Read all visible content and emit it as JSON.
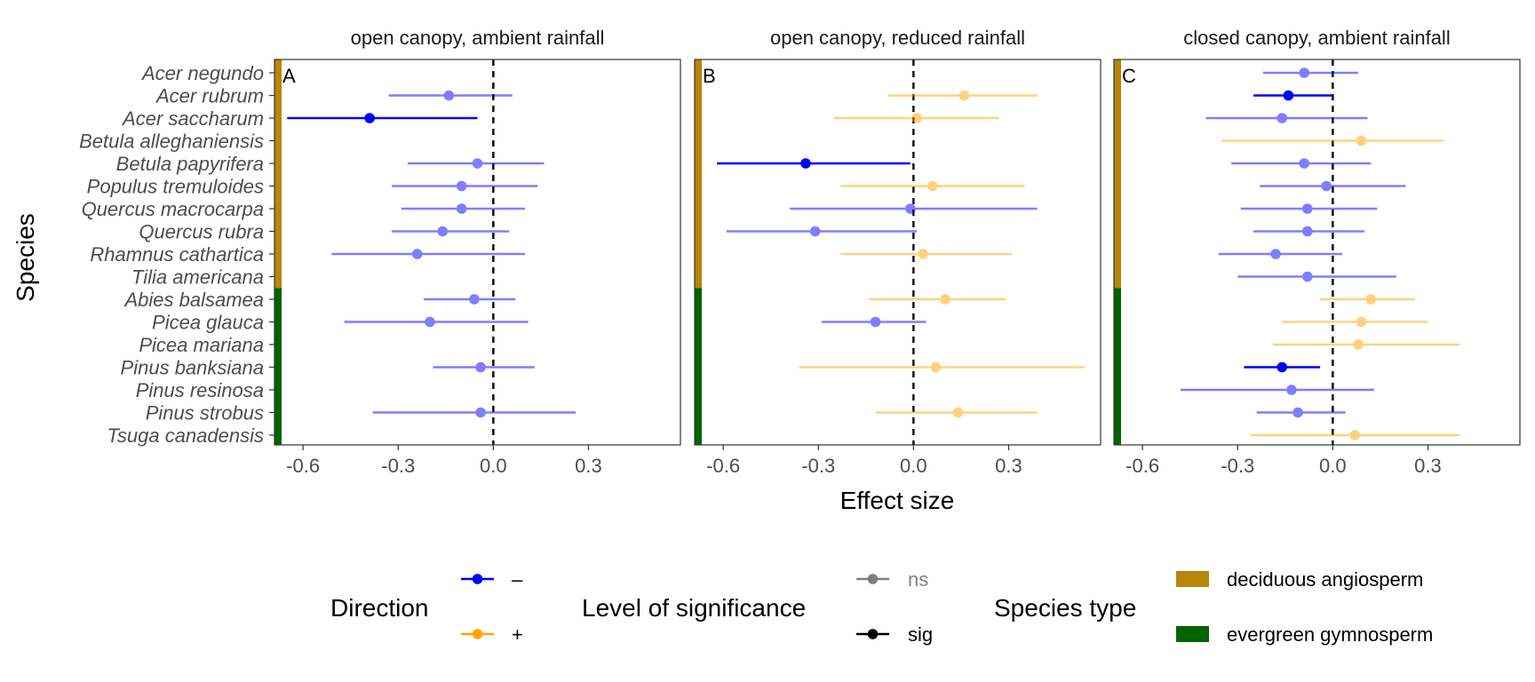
{
  "chart_data": {
    "type": "forest",
    "y_axis_title": "Species",
    "x_axis_title": "Effect size",
    "x_ticks": [
      -0.6,
      -0.3,
      0.0,
      0.3
    ],
    "x_tick_labels": [
      "-0.6",
      "-0.3",
      "0.0",
      "0.3"
    ],
    "xlim": [
      -0.69,
      0.59
    ],
    "species": [
      "Acer negundo",
      "Acer rubrum",
      "Acer saccharum",
      "Betula alleghaniensis",
      "Betula papyrifera",
      "Populus tremuloides",
      "Quercus macrocarpa",
      "Quercus rubra",
      "Rhamnus cathartica",
      "Tilia americana",
      "Abies balsamea",
      "Picea glauca",
      "Picea mariana",
      "Pinus banksiana",
      "Pinus resinosa",
      "Pinus strobus",
      "Tsuga canadensis"
    ],
    "species_type": [
      "deciduous angiosperm",
      "deciduous angiosperm",
      "deciduous angiosperm",
      "deciduous angiosperm",
      "deciduous angiosperm",
      "deciduous angiosperm",
      "deciduous angiosperm",
      "deciduous angiosperm",
      "deciduous angiosperm",
      "deciduous angiosperm",
      "evergreen gymnosperm",
      "evergreen gymnosperm",
      "evergreen gymnosperm",
      "evergreen gymnosperm",
      "evergreen gymnosperm",
      "evergreen gymnosperm",
      "evergreen gymnosperm"
    ],
    "colors": {
      "negative": "#0000FF",
      "positive": "#FFA500",
      "deciduous": "#B8860B",
      "evergreen": "#006400",
      "zero_line": "#000000"
    },
    "panels": [
      {
        "tag": "A",
        "title": "open canopy, ambient rainfall",
        "points": [
          {
            "species": "Acer rubrum",
            "est": -0.14,
            "lo": -0.33,
            "hi": 0.06,
            "sig": false
          },
          {
            "species": "Acer saccharum",
            "est": -0.39,
            "lo": -0.65,
            "hi": -0.05,
            "sig": true
          },
          {
            "species": "Betula papyrifera",
            "est": -0.05,
            "lo": -0.27,
            "hi": 0.16,
            "sig": false
          },
          {
            "species": "Populus tremuloides",
            "est": -0.1,
            "lo": -0.32,
            "hi": 0.14,
            "sig": false
          },
          {
            "species": "Quercus macrocarpa",
            "est": -0.1,
            "lo": -0.29,
            "hi": 0.1,
            "sig": false
          },
          {
            "species": "Quercus rubra",
            "est": -0.16,
            "lo": -0.32,
            "hi": 0.05,
            "sig": false
          },
          {
            "species": "Rhamnus cathartica",
            "est": -0.24,
            "lo": -0.51,
            "hi": 0.1,
            "sig": false
          },
          {
            "species": "Abies balsamea",
            "est": -0.06,
            "lo": -0.22,
            "hi": 0.07,
            "sig": false
          },
          {
            "species": "Picea glauca",
            "est": -0.2,
            "lo": -0.47,
            "hi": 0.11,
            "sig": false
          },
          {
            "species": "Pinus banksiana",
            "est": -0.04,
            "lo": -0.19,
            "hi": 0.13,
            "sig": false
          },
          {
            "species": "Pinus strobus",
            "est": -0.04,
            "lo": -0.38,
            "hi": 0.26,
            "sig": false
          }
        ]
      },
      {
        "tag": "B",
        "title": "open canopy, reduced rainfall",
        "points": [
          {
            "species": "Acer rubrum",
            "est": 0.16,
            "lo": -0.08,
            "hi": 0.39,
            "sig": false
          },
          {
            "species": "Acer saccharum",
            "est": 0.01,
            "lo": -0.25,
            "hi": 0.27,
            "sig": false
          },
          {
            "species": "Betula papyrifera",
            "est": -0.34,
            "lo": -0.62,
            "hi": -0.01,
            "sig": true
          },
          {
            "species": "Populus tremuloides",
            "est": 0.06,
            "lo": -0.23,
            "hi": 0.35,
            "sig": false
          },
          {
            "species": "Quercus macrocarpa",
            "est": -0.01,
            "lo": -0.39,
            "hi": 0.39,
            "sig": false
          },
          {
            "species": "Quercus rubra",
            "est": -0.31,
            "lo": -0.59,
            "hi": 0.01,
            "sig": false
          },
          {
            "species": "Rhamnus cathartica",
            "est": 0.03,
            "lo": -0.23,
            "hi": 0.31,
            "sig": false
          },
          {
            "species": "Abies balsamea",
            "est": 0.1,
            "lo": -0.14,
            "hi": 0.29,
            "sig": false
          },
          {
            "species": "Picea glauca",
            "est": -0.12,
            "lo": -0.29,
            "hi": 0.04,
            "sig": false
          },
          {
            "species": "Pinus banksiana",
            "est": 0.07,
            "lo": -0.36,
            "hi": 0.54,
            "sig": false
          },
          {
            "species": "Pinus strobus",
            "est": 0.14,
            "lo": -0.12,
            "hi": 0.39,
            "sig": false
          }
        ]
      },
      {
        "tag": "C",
        "title": "closed canopy, ambient rainfall",
        "points": [
          {
            "species": "Acer negundo",
            "est": -0.09,
            "lo": -0.22,
            "hi": 0.08,
            "sig": false
          },
          {
            "species": "Acer rubrum",
            "est": -0.14,
            "lo": -0.25,
            "hi": 0.0,
            "sig": true
          },
          {
            "species": "Acer saccharum",
            "est": -0.16,
            "lo": -0.4,
            "hi": 0.11,
            "sig": false
          },
          {
            "species": "Betula alleghaniensis",
            "est": 0.09,
            "lo": -0.35,
            "hi": 0.35,
            "sig": false
          },
          {
            "species": "Betula papyrifera",
            "est": -0.09,
            "lo": -0.32,
            "hi": 0.12,
            "sig": false
          },
          {
            "species": "Populus tremuloides",
            "est": -0.02,
            "lo": -0.23,
            "hi": 0.23,
            "sig": false
          },
          {
            "species": "Quercus macrocarpa",
            "est": -0.08,
            "lo": -0.29,
            "hi": 0.14,
            "sig": false
          },
          {
            "species": "Quercus rubra",
            "est": -0.08,
            "lo": -0.25,
            "hi": 0.1,
            "sig": false
          },
          {
            "species": "Rhamnus cathartica",
            "est": -0.18,
            "lo": -0.36,
            "hi": 0.03,
            "sig": false
          },
          {
            "species": "Tilia americana",
            "est": -0.08,
            "lo": -0.3,
            "hi": 0.2,
            "sig": false
          },
          {
            "species": "Abies balsamea",
            "est": 0.12,
            "lo": -0.04,
            "hi": 0.26,
            "sig": false
          },
          {
            "species": "Picea glauca",
            "est": 0.09,
            "lo": -0.16,
            "hi": 0.3,
            "sig": false
          },
          {
            "species": "Picea mariana",
            "est": 0.08,
            "lo": -0.19,
            "hi": 0.4,
            "sig": false
          },
          {
            "species": "Pinus banksiana",
            "est": -0.16,
            "lo": -0.28,
            "hi": -0.04,
            "sig": true
          },
          {
            "species": "Pinus resinosa",
            "est": -0.13,
            "lo": -0.48,
            "hi": 0.13,
            "sig": false
          },
          {
            "species": "Pinus strobus",
            "est": -0.11,
            "lo": -0.24,
            "hi": 0.04,
            "sig": false
          },
          {
            "species": "Tsuga canadensis",
            "est": 0.07,
            "lo": -0.26,
            "hi": 0.4,
            "sig": false
          }
        ]
      }
    ],
    "legend": {
      "direction": {
        "title": "Direction",
        "items": [
          {
            "label": "–",
            "color": "#0000FF"
          },
          {
            "label": "+",
            "color": "#FFA500"
          }
        ]
      },
      "significance": {
        "title": "Level of significance",
        "items": [
          {
            "label": "ns",
            "opacity": 0.5
          },
          {
            "label": "sig",
            "opacity": 1
          }
        ]
      },
      "species_type": {
        "title": "Species type",
        "items": [
          {
            "label": "deciduous angiosperm",
            "color": "#B8860B"
          },
          {
            "label": "evergreen gymnosperm",
            "color": "#006400"
          }
        ]
      },
      "position": "bottom"
    }
  }
}
